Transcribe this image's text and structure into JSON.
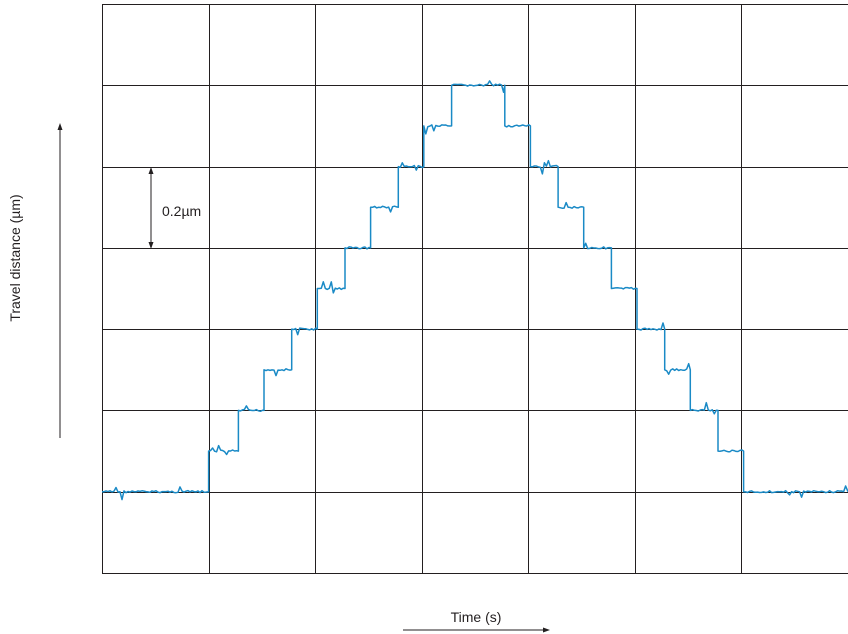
{
  "chart_data": {
    "type": "line",
    "title": "",
    "xlabel": "Time (s)",
    "ylabel": "Travel distance (µm)",
    "grid": true,
    "xlim": [
      0,
      7
    ],
    "ylim": [
      -0.2,
      1.2
    ],
    "scale_annotation": "0.2µm",
    "series_color": "#1a8ac6",
    "series": [
      {
        "name": "",
        "x": [
          0,
          1,
          1,
          1.28,
          1.28,
          1.52,
          1.52,
          1.78,
          1.78,
          2.02,
          2.02,
          2.28,
          2.28,
          2.52,
          2.52,
          2.78,
          2.78,
          3.02,
          3.02,
          3.28,
          3.28,
          3.78,
          3.78,
          4.02,
          4.02,
          4.28,
          4.28,
          4.52,
          4.52,
          4.78,
          4.78,
          5.02,
          5.02,
          5.28,
          5.28,
          5.52,
          5.52,
          5.78,
          5.78,
          6.02,
          6.02,
          7
        ],
        "y": [
          0,
          0,
          0.1,
          0.1,
          0.2,
          0.2,
          0.3,
          0.3,
          0.4,
          0.4,
          0.5,
          0.5,
          0.6,
          0.6,
          0.7,
          0.7,
          0.8,
          0.8,
          0.9,
          0.9,
          1.0,
          1.0,
          0.9,
          0.9,
          0.8,
          0.8,
          0.7,
          0.7,
          0.6,
          0.6,
          0.5,
          0.5,
          0.4,
          0.4,
          0.3,
          0.3,
          0.2,
          0.2,
          0.1,
          0.1,
          0,
          0
        ]
      }
    ]
  }
}
